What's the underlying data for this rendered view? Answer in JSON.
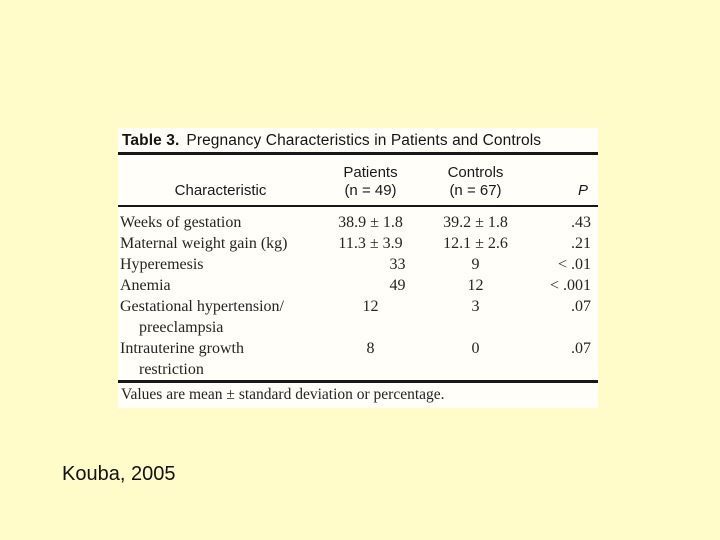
{
  "slide": {
    "background_color": "#FFFCC9",
    "citation": "Kouba, 2005"
  },
  "table_figure": {
    "title_label": "Table 3.",
    "title_text": "Pregnancy Characteristics in Patients and Controls",
    "header": {
      "characteristic": "Characteristic",
      "patients_line1": "Patients",
      "patients_line2": "(n = 49)",
      "controls_line1": "Controls",
      "controls_line2": "(n = 67)",
      "p": "P"
    },
    "rows": [
      {
        "characteristic": "Weeks of gestation",
        "patients": "38.9 ± 1.8",
        "controls": "39.2 ± 1.8",
        "p": ".43"
      },
      {
        "characteristic": "Maternal weight gain (kg)",
        "patients": "11.3 ± 3.9",
        "controls": "12.1 ± 2.6",
        "p": ".21"
      },
      {
        "characteristic": "Hyperemesis",
        "patients": "33",
        "controls": "9",
        "p": "< .01"
      },
      {
        "characteristic": "Anemia",
        "patients": "49",
        "controls": "12",
        "p": "< .001"
      },
      {
        "characteristic": "Gestational hypertension/",
        "characteristic_line2": "preeclampsia",
        "patients": "12",
        "controls": "3",
        "p": ".07"
      },
      {
        "characteristic": "Intrauterine growth",
        "characteristic_line2": "restriction",
        "patients": "8",
        "controls": "0",
        "p": ".07"
      }
    ],
    "footnote": "Values are mean ± standard deviation or percentage."
  }
}
